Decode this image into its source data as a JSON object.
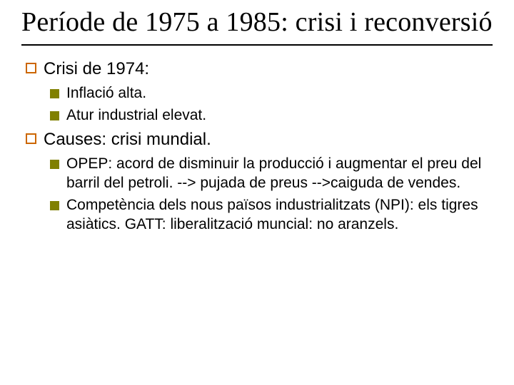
{
  "title": "Període  de 1975 a 1985: crisi i reconversió",
  "colors": {
    "bullet_open_border": "#cc6600",
    "bullet_solid_fill": "#808000",
    "rule": "#000000",
    "text": "#000000",
    "background": "#ffffff"
  },
  "typography": {
    "title_font": "Times New Roman",
    "title_size_pt": 38,
    "body_font": "Verdana",
    "lvl1_size_pt": 24,
    "lvl2_size_pt": 21
  },
  "bullets": {
    "lvl1_style": "open-square",
    "lvl2_style": "solid-square"
  },
  "items": [
    {
      "level": 1,
      "text": "Crisi de 1974:"
    },
    {
      "level": 2,
      "text": "Inflació alta."
    },
    {
      "level": 2,
      "text": "Atur industrial elevat."
    },
    {
      "level": 1,
      "text": "Causes: crisi mundial."
    },
    {
      "level": 2,
      "text": "OPEP: acord de disminuir la producció i augmentar el preu del barril del petroli. --> pujada de preus -->caiguda de vendes."
    },
    {
      "level": 2,
      "text": "Competència dels nous països industrialitzats (NPI):  els tigres asiàtics. GATT: liberalització muncial: no aranzels."
    }
  ]
}
